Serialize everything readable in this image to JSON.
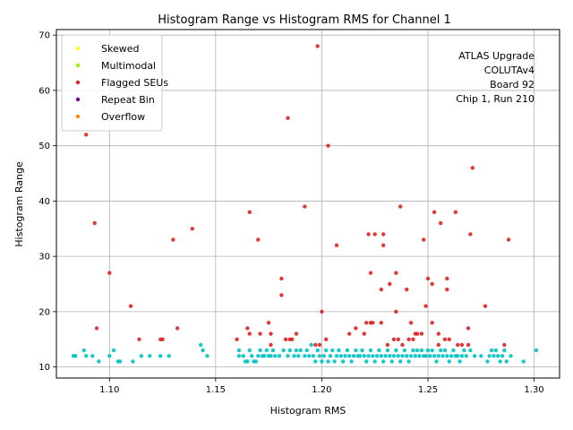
{
  "chart_data": {
    "type": "scatter",
    "title": "Histogram Range vs Histogram RMS for Channel 1",
    "xlabel": "Histogram RMS",
    "ylabel": "Histogram Range",
    "xlim": [
      1.075,
      1.312
    ],
    "ylim": [
      8,
      71
    ],
    "xticks": [
      "1.10",
      "1.15",
      "1.20",
      "1.25",
      "1.30"
    ],
    "xtick_values": [
      1.1,
      1.15,
      1.2,
      1.25,
      1.3
    ],
    "yticks": [
      "10",
      "20",
      "30",
      "40",
      "50",
      "60",
      "70"
    ],
    "ytick_values": [
      10,
      20,
      30,
      40,
      50,
      60,
      70
    ],
    "grid": true,
    "legend_position": "top-left",
    "annotation": [
      "ATLAS Upgrade",
      "COLUTAv4",
      "Board 92",
      "Chip 1, Run 210"
    ],
    "series": [
      {
        "name": "Skewed",
        "color": "#ffff00",
        "points": []
      },
      {
        "name": "Multimodal",
        "color": "#99ee00",
        "points": []
      },
      {
        "name": "Flagged SEUs",
        "color": "#dd2222",
        "points": [
          [
            1.089,
            52
          ],
          [
            1.093,
            36
          ],
          [
            1.094,
            17
          ],
          [
            1.1,
            27
          ],
          [
            1.11,
            21
          ],
          [
            1.114,
            15
          ],
          [
            1.124,
            15
          ],
          [
            1.125,
            15
          ],
          [
            1.13,
            33
          ],
          [
            1.132,
            17
          ],
          [
            1.139,
            35
          ],
          [
            1.16,
            15
          ],
          [
            1.165,
            17
          ],
          [
            1.166,
            38
          ],
          [
            1.166,
            16
          ],
          [
            1.17,
            33
          ],
          [
            1.171,
            16
          ],
          [
            1.175,
            18
          ],
          [
            1.176,
            14
          ],
          [
            1.176,
            16
          ],
          [
            1.181,
            26
          ],
          [
            1.181,
            23
          ],
          [
            1.183,
            15
          ],
          [
            1.184,
            55
          ],
          [
            1.185,
            15
          ],
          [
            1.186,
            15
          ],
          [
            1.188,
            16
          ],
          [
            1.192,
            39
          ],
          [
            1.197,
            14
          ],
          [
            1.198,
            68
          ],
          [
            1.199,
            14
          ],
          [
            1.2,
            20
          ],
          [
            1.202,
            15
          ],
          [
            1.203,
            50
          ],
          [
            1.207,
            32
          ],
          [
            1.213,
            16
          ],
          [
            1.216,
            17
          ],
          [
            1.22,
            16
          ],
          [
            1.221,
            18
          ],
          [
            1.222,
            34
          ],
          [
            1.223,
            27
          ],
          [
            1.223,
            18
          ],
          [
            1.224,
            18
          ],
          [
            1.225,
            34
          ],
          [
            1.228,
            24
          ],
          [
            1.228,
            18
          ],
          [
            1.229,
            34
          ],
          [
            1.229,
            32
          ],
          [
            1.231,
            14
          ],
          [
            1.232,
            25
          ],
          [
            1.234,
            15
          ],
          [
            1.235,
            20
          ],
          [
            1.235,
            27
          ],
          [
            1.236,
            15
          ],
          [
            1.237,
            39
          ],
          [
            1.238,
            14
          ],
          [
            1.24,
            24
          ],
          [
            1.241,
            15
          ],
          [
            1.242,
            18
          ],
          [
            1.243,
            15
          ],
          [
            1.244,
            16
          ],
          [
            1.245,
            16
          ],
          [
            1.247,
            16
          ],
          [
            1.248,
            33
          ],
          [
            1.249,
            21
          ],
          [
            1.25,
            26
          ],
          [
            1.252,
            25
          ],
          [
            1.252,
            18
          ],
          [
            1.253,
            38
          ],
          [
            1.255,
            14
          ],
          [
            1.255,
            16
          ],
          [
            1.256,
            36
          ],
          [
            1.258,
            15
          ],
          [
            1.259,
            26
          ],
          [
            1.259,
            24
          ],
          [
            1.26,
            15
          ],
          [
            1.263,
            38
          ],
          [
            1.264,
            14
          ],
          [
            1.266,
            14
          ],
          [
            1.269,
            17
          ],
          [
            1.269,
            14
          ],
          [
            1.27,
            34
          ],
          [
            1.271,
            46
          ],
          [
            1.277,
            21
          ],
          [
            1.286,
            14
          ],
          [
            1.288,
            33
          ]
        ]
      },
      {
        "name": "Repeat Bin",
        "color": "#7b0099",
        "points": []
      },
      {
        "name": "Overflow",
        "color": "#ff8c00",
        "points": []
      },
      {
        "name": "",
        "color": "#00c2c2",
        "points": [
          [
            1.083,
            12
          ],
          [
            1.084,
            12
          ],
          [
            1.088,
            13
          ],
          [
            1.089,
            12
          ],
          [
            1.092,
            12
          ],
          [
            1.095,
            11
          ],
          [
            1.1,
            12
          ],
          [
            1.102,
            13
          ],
          [
            1.104,
            11
          ],
          [
            1.105,
            11
          ],
          [
            1.111,
            11
          ],
          [
            1.115,
            12
          ],
          [
            1.119,
            12
          ],
          [
            1.124,
            12
          ],
          [
            1.128,
            12
          ],
          [
            1.143,
            14
          ],
          [
            1.144,
            13
          ],
          [
            1.146,
            12
          ],
          [
            1.161,
            12
          ],
          [
            1.161,
            13
          ],
          [
            1.163,
            12
          ],
          [
            1.164,
            11
          ],
          [
            1.165,
            11
          ],
          [
            1.166,
            13
          ],
          [
            1.167,
            12
          ],
          [
            1.168,
            11
          ],
          [
            1.169,
            11
          ],
          [
            1.17,
            12
          ],
          [
            1.171,
            13
          ],
          [
            1.172,
            12
          ],
          [
            1.173,
            12
          ],
          [
            1.174,
            13
          ],
          [
            1.175,
            12
          ],
          [
            1.176,
            12
          ],
          [
            1.177,
            13
          ],
          [
            1.178,
            12
          ],
          [
            1.18,
            12
          ],
          [
            1.182,
            13
          ],
          [
            1.184,
            12
          ],
          [
            1.185,
            13
          ],
          [
            1.187,
            12
          ],
          [
            1.188,
            13
          ],
          [
            1.189,
            12
          ],
          [
            1.19,
            13
          ],
          [
            1.192,
            12
          ],
          [
            1.193,
            13
          ],
          [
            1.194,
            12
          ],
          [
            1.195,
            14
          ],
          [
            1.196,
            12
          ],
          [
            1.197,
            11
          ],
          [
            1.198,
            13
          ],
          [
            1.199,
            12
          ],
          [
            1.2,
            11
          ],
          [
            1.201,
            12
          ],
          [
            1.202,
            13
          ],
          [
            1.203,
            11
          ],
          [
            1.204,
            12
          ],
          [
            1.205,
            13
          ],
          [
            1.206,
            11
          ],
          [
            1.207,
            12
          ],
          [
            1.208,
            13
          ],
          [
            1.209,
            12
          ],
          [
            1.21,
            11
          ],
          [
            1.211,
            12
          ],
          [
            1.212,
            13
          ],
          [
            1.213,
            12
          ],
          [
            1.214,
            11
          ],
          [
            1.215,
            12
          ],
          [
            1.216,
            13
          ],
          [
            1.217,
            12
          ],
          [
            1.218,
            12
          ],
          [
            1.219,
            13
          ],
          [
            1.22,
            12
          ],
          [
            1.221,
            11
          ],
          [
            1.222,
            12
          ],
          [
            1.223,
            13
          ],
          [
            1.224,
            12
          ],
          [
            1.225,
            11
          ],
          [
            1.226,
            12
          ],
          [
            1.227,
            13
          ],
          [
            1.228,
            12
          ],
          [
            1.229,
            11
          ],
          [
            1.23,
            12
          ],
          [
            1.231,
            13
          ],
          [
            1.232,
            12
          ],
          [
            1.233,
            11
          ],
          [
            1.234,
            12
          ],
          [
            1.235,
            13
          ],
          [
            1.236,
            12
          ],
          [
            1.237,
            11
          ],
          [
            1.238,
            12
          ],
          [
            1.239,
            13
          ],
          [
            1.24,
            12
          ],
          [
            1.241,
            11
          ],
          [
            1.242,
            12
          ],
          [
            1.243,
            13
          ],
          [
            1.244,
            12
          ],
          [
            1.245,
            13
          ],
          [
            1.246,
            12
          ],
          [
            1.247,
            13
          ],
          [
            1.248,
            12
          ],
          [
            1.249,
            12
          ],
          [
            1.25,
            13
          ],
          [
            1.251,
            12
          ],
          [
            1.252,
            13
          ],
          [
            1.253,
            12
          ],
          [
            1.254,
            11
          ],
          [
            1.255,
            12
          ],
          [
            1.256,
            13
          ],
          [
            1.257,
            12
          ],
          [
            1.258,
            13
          ],
          [
            1.259,
            12
          ],
          [
            1.26,
            11
          ],
          [
            1.261,
            12
          ],
          [
            1.262,
            13
          ],
          [
            1.263,
            12
          ],
          [
            1.264,
            12
          ],
          [
            1.265,
            11
          ],
          [
            1.266,
            12
          ],
          [
            1.267,
            13
          ],
          [
            1.268,
            12
          ],
          [
            1.27,
            13
          ],
          [
            1.272,
            12
          ],
          [
            1.275,
            12
          ],
          [
            1.278,
            11
          ],
          [
            1.279,
            12
          ],
          [
            1.28,
            13
          ],
          [
            1.281,
            12
          ],
          [
            1.282,
            13
          ],
          [
            1.283,
            12
          ],
          [
            1.284,
            11
          ],
          [
            1.285,
            12
          ],
          [
            1.286,
            13
          ],
          [
            1.287,
            11
          ],
          [
            1.289,
            12
          ],
          [
            1.295,
            11
          ],
          [
            1.301,
            13
          ]
        ]
      }
    ]
  }
}
